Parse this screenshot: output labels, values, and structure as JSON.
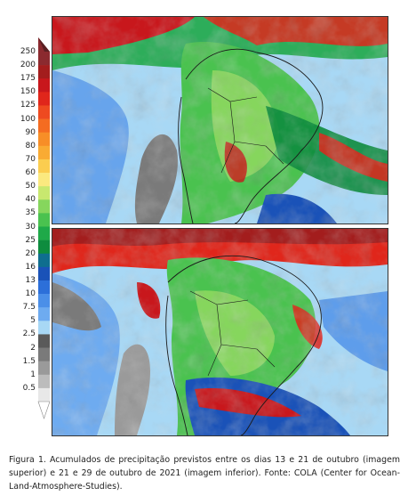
{
  "colorbar": {
    "labels": [
      "250",
      "200",
      "175",
      "150",
      "125",
      "100",
      "90",
      "80",
      "70",
      "60",
      "50",
      "40",
      "35",
      "30",
      "25",
      "20",
      "16",
      "13",
      "10",
      "7.5",
      "5",
      "2.5",
      "2",
      "1.5",
      "1",
      "0.5"
    ],
    "colors": [
      "#8b2a2f",
      "#a31d1d",
      "#c8171c",
      "#e0261b",
      "#ee4a20",
      "#f46c21",
      "#f78e27",
      "#f9ab33",
      "#fbcd4f",
      "#fbe97f",
      "#c8e86f",
      "#86d65d",
      "#4ac24f",
      "#1fa949",
      "#0e8c3e",
      "#0f6e8f",
      "#1a52b8",
      "#2c6fd9",
      "#4b8fe8",
      "#6eabf0",
      "#a8d8f5",
      "#5a5a5a",
      "#7a7a7a",
      "#9a9a9a",
      "#bcbcbc",
      "#e8e8e8"
    ]
  },
  "maps": [
    {
      "label": "Acumulados previstos 13 a 21 de outubro de 2021"
    },
    {
      "label": "Acumulados previstos 21 a 29 de outubro de 2021"
    }
  ],
  "caption": "Figura 1. Acumulados de precipitação previstos entre os dias 13 e 21 de outubro (imagem superior) e 21 e 29 de outubro de 2021 (imagem inferior). Fonte: COLA (Center for Ocean-Land-Atmosphere-Studies)."
}
